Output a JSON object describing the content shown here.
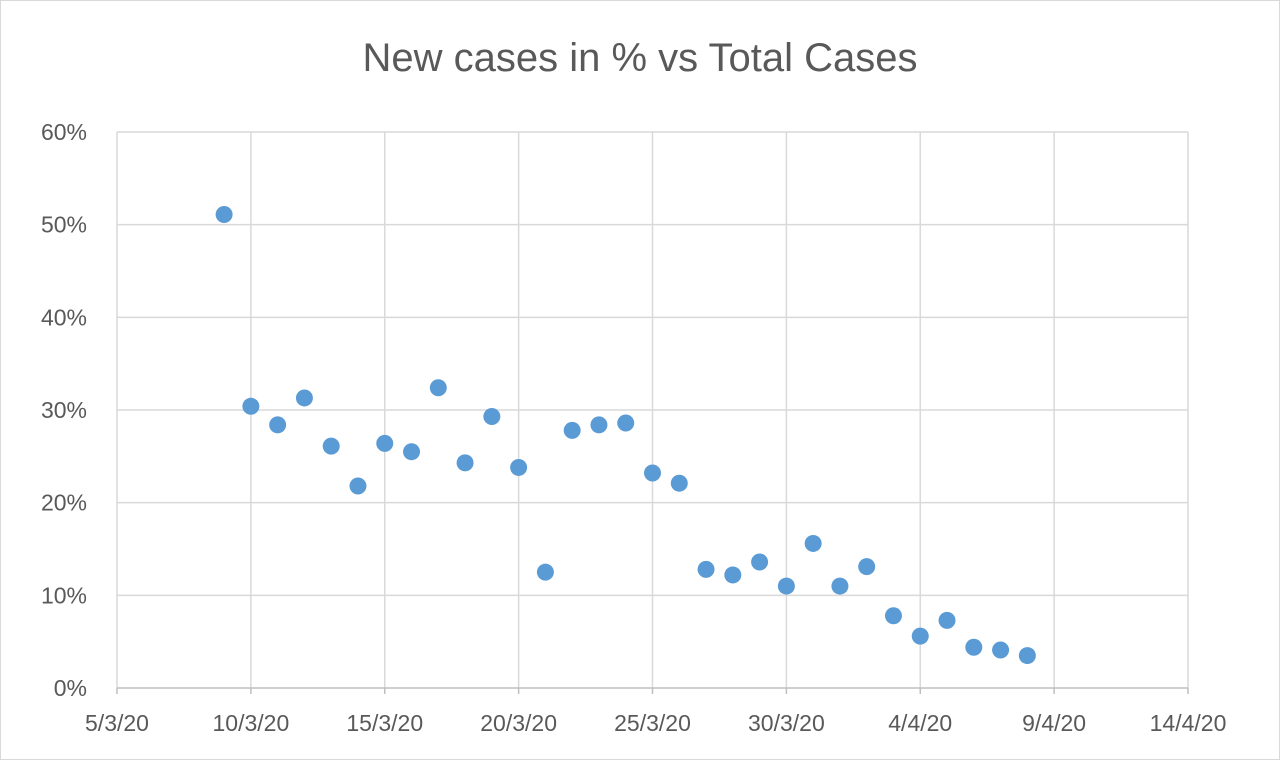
{
  "chart_data": {
    "type": "scatter",
    "title": "New cases in % vs Total Cases",
    "xlabel": "",
    "ylabel": "",
    "x_ticks": [
      "5/3/20",
      "10/3/20",
      "15/3/20",
      "20/3/20",
      "25/3/20",
      "30/3/20",
      "4/4/20",
      "9/4/20",
      "14/4/20"
    ],
    "y_ticks": [
      "0%",
      "10%",
      "20%",
      "30%",
      "40%",
      "50%",
      "60%"
    ],
    "xlim": [
      "5/3/20",
      "14/4/20"
    ],
    "ylim": [
      0,
      60
    ],
    "y_unit": "%",
    "grid": true,
    "legend": "none",
    "marker_color": "#5b9bd5",
    "points": [
      {
        "x": "9/3/20",
        "y": 51.1
      },
      {
        "x": "10/3/20",
        "y": 30.4
      },
      {
        "x": "11/3/20",
        "y": 28.4
      },
      {
        "x": "12/3/20",
        "y": 31.3
      },
      {
        "x": "13/3/20",
        "y": 26.1
      },
      {
        "x": "14/3/20",
        "y": 21.8
      },
      {
        "x": "15/3/20",
        "y": 26.4
      },
      {
        "x": "16/3/20",
        "y": 25.5
      },
      {
        "x": "17/3/20",
        "y": 32.4
      },
      {
        "x": "18/3/20",
        "y": 24.3
      },
      {
        "x": "19/3/20",
        "y": 29.3
      },
      {
        "x": "20/3/20",
        "y": 23.8
      },
      {
        "x": "21/3/20",
        "y": 12.5
      },
      {
        "x": "22/3/20",
        "y": 27.8
      },
      {
        "x": "23/3/20",
        "y": 28.4
      },
      {
        "x": "24/3/20",
        "y": 28.6
      },
      {
        "x": "25/3/20",
        "y": 23.2
      },
      {
        "x": "26/3/20",
        "y": 22.1
      },
      {
        "x": "27/3/20",
        "y": 12.8
      },
      {
        "x": "28/3/20",
        "y": 12.2
      },
      {
        "x": "29/3/20",
        "y": 13.6
      },
      {
        "x": "30/3/20",
        "y": 11.0
      },
      {
        "x": "31/3/20",
        "y": 15.6
      },
      {
        "x": "1/4/20",
        "y": 11.0
      },
      {
        "x": "2/4/20",
        "y": 13.1
      },
      {
        "x": "3/4/20",
        "y": 7.8
      },
      {
        "x": "4/4/20",
        "y": 5.6
      },
      {
        "x": "5/4/20",
        "y": 7.3
      },
      {
        "x": "6/4/20",
        "y": 4.4
      },
      {
        "x": "7/4/20",
        "y": 4.1
      },
      {
        "x": "8/4/20",
        "y": 3.5
      }
    ]
  }
}
